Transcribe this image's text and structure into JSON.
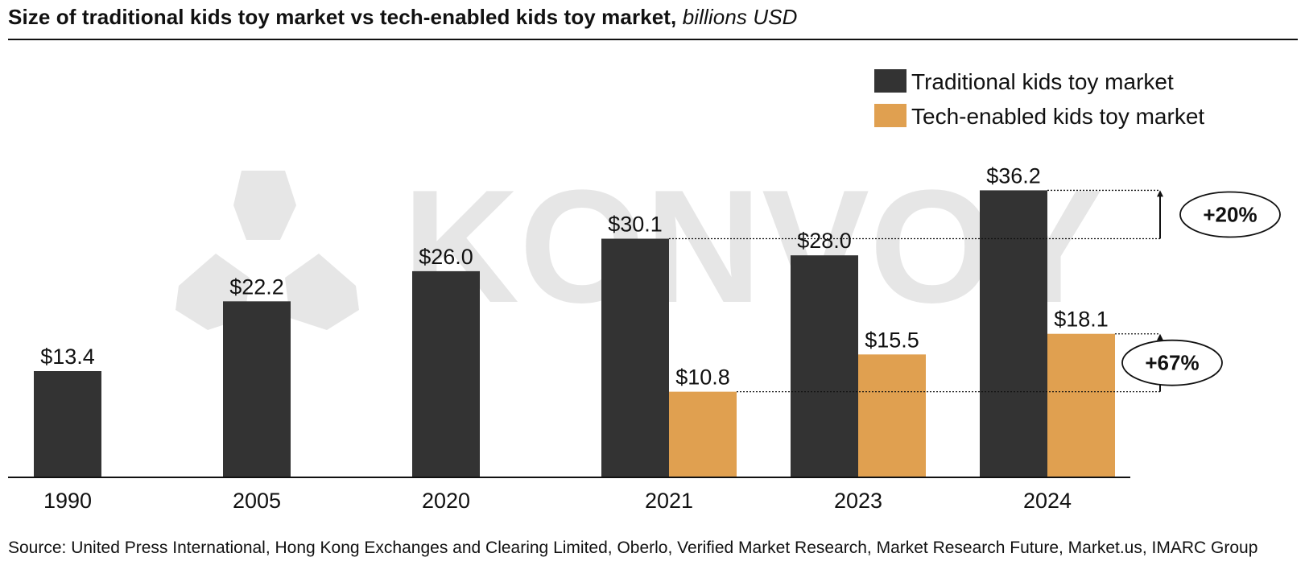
{
  "title": {
    "main": "Size of traditional kids toy market vs tech-enabled kids toy market,",
    "unit": "billions USD"
  },
  "watermark": {
    "text": "KONVOY"
  },
  "chart_data": {
    "type": "bar",
    "categories": [
      "1990",
      "2005",
      "2020",
      "2021",
      "2023",
      "2024"
    ],
    "series": [
      {
        "name": "Traditional kids toy market",
        "color": "#333333",
        "values": [
          13.4,
          22.2,
          26.0,
          30.1,
          28.0,
          36.2
        ],
        "labels": [
          "$13.4",
          "$22.2",
          "$26.0",
          "$30.1",
          "$28.0",
          "$36.2"
        ]
      },
      {
        "name": "Tech-enabled kids toy market",
        "color": "#E0A050",
        "values": [
          null,
          null,
          null,
          10.8,
          15.5,
          18.1
        ],
        "labels": [
          "",
          "",
          "",
          "$10.8",
          "$15.5",
          "$18.1"
        ]
      }
    ],
    "ylim": [
      0,
      40
    ],
    "legend_position": "top-right",
    "grid": false,
    "annotations": [
      {
        "text": "+20%",
        "series": 0,
        "from_category": "2021",
        "to_category": "2024"
      },
      {
        "text": "+67%",
        "series": 1,
        "from_category": "2021",
        "to_category": "2024"
      }
    ]
  },
  "source": "Source: United Press International, Hong Kong Exchanges and Clearing Limited, Oberlo, Verified Market Research, Market Research Future, Market.us, IMARC Group"
}
